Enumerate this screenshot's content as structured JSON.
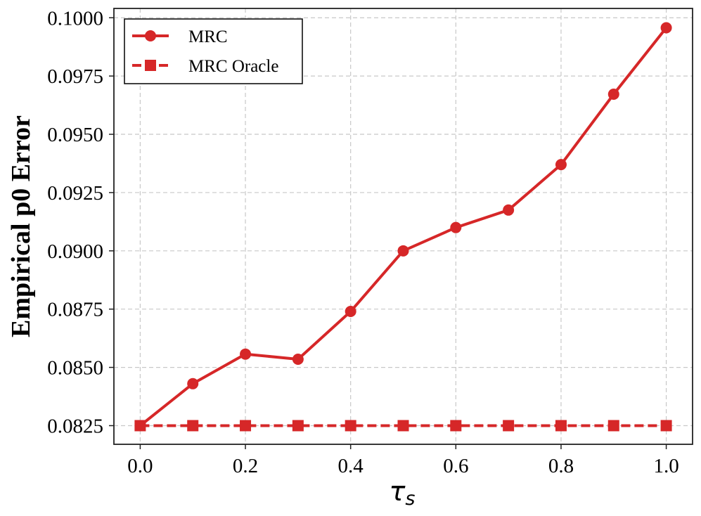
{
  "chart_data": {
    "type": "line",
    "xlabel": "τ",
    "xlabel_subscript": "s",
    "ylabel": "Empirical p0 Error",
    "xlim": [
      -0.05,
      1.05
    ],
    "ylim": [
      0.0817,
      0.1004
    ],
    "xticks": [
      0.0,
      0.2,
      0.4,
      0.6,
      0.8,
      1.0
    ],
    "xtick_labels": [
      "0.0",
      "0.2",
      "0.4",
      "0.6",
      "0.8",
      "1.0"
    ],
    "yticks": [
      0.0825,
      0.085,
      0.0875,
      0.09,
      0.0925,
      0.095,
      0.0975,
      0.1
    ],
    "ytick_labels": [
      "0.0825",
      "0.0850",
      "0.0875",
      "0.0900",
      "0.0925",
      "0.0950",
      "0.0975",
      "0.1000"
    ],
    "grid": true,
    "legend_position": "top-left",
    "x": [
      0.0,
      0.1,
      0.2,
      0.3,
      0.4,
      0.5,
      0.6,
      0.7,
      0.8,
      0.9,
      1.0
    ],
    "series": [
      {
        "name": "MRC",
        "values": [
          0.0825,
          0.0843,
          0.08557,
          0.08535,
          0.0874,
          0.09,
          0.091,
          0.09175,
          0.0937,
          0.09672,
          0.09957
        ],
        "color": "#d62728",
        "line_style": "solid",
        "marker": "circle"
      },
      {
        "name": "MRC Oracle",
        "values": [
          0.0825,
          0.0825,
          0.0825,
          0.0825,
          0.0825,
          0.0825,
          0.0825,
          0.0825,
          0.0825,
          0.0825,
          0.0825
        ],
        "color": "#d62728",
        "line_style": "dashed",
        "marker": "square"
      }
    ]
  }
}
